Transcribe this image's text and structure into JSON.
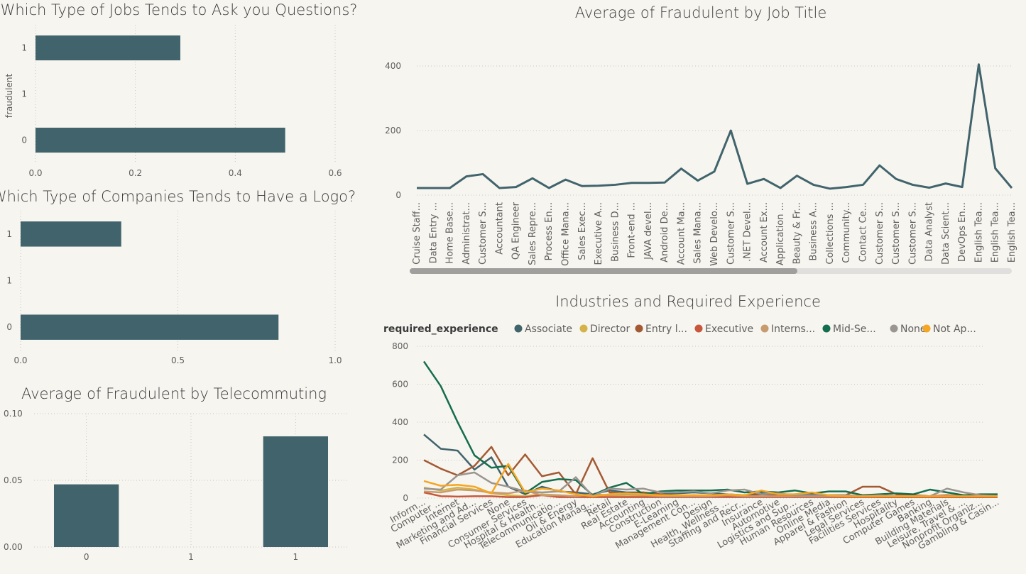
{
  "chart_data": [
    {
      "id": "questions",
      "type": "bar",
      "orientation": "horizontal",
      "title": "Which Type of Jobs Tends to Ask you Questions?",
      "ylabel": "fraudulent",
      "categories": [
        "1",
        "1",
        "0"
      ],
      "values": [
        0.29,
        null,
        0.5
      ],
      "xticks": [
        "0.0",
        "0.2",
        "0.4",
        "0.6"
      ],
      "xlim": [
        0,
        0.6
      ],
      "color": "#41646c"
    },
    {
      "id": "logo",
      "type": "bar",
      "orientation": "horizontal",
      "title": "Which Type of Companies Tends to Have a Logo?",
      "categories": [
        "1",
        "1",
        "0"
      ],
      "values": [
        0.32,
        null,
        0.82
      ],
      "xticks": [
        "0.0",
        "0.5",
        "1.0"
      ],
      "xlim": [
        0,
        1.0
      ],
      "color": "#41646c"
    },
    {
      "id": "telecommuting",
      "type": "bar",
      "orientation": "vertical",
      "title": "Average of Fraudulent by Telecommuting",
      "categories": [
        "0",
        "1",
        "1"
      ],
      "values": [
        0.047,
        null,
        0.083
      ],
      "yticks": [
        "0.00",
        "0.05",
        "0.10"
      ],
      "ylim": [
        0,
        0.1
      ],
      "color": "#41646c"
    },
    {
      "id": "jobtitle",
      "type": "line",
      "title": "Average of Fraudulent by Job Title",
      "categories": [
        "Cruise Staff...",
        "Data Entry ...",
        "Home Base...",
        "Administrat...",
        "Customer S...",
        "Accountant",
        "QA Engineer",
        "Sales Repre...",
        "Process En...",
        "Office Mana...",
        "Sales Exec...",
        "Executive A...",
        "Business D...",
        "Front-end ...",
        "JAVA devel...",
        "Android De...",
        "Account Ma...",
        "Sales Mana...",
        "Web Develo...",
        "Customer S...",
        ".NET Devel...",
        "Account Ex...",
        "Application ...",
        "Beauty & Fr...",
        "Business A...",
        "Collections ...",
        "Community...",
        "Contact Ce...",
        "Customer S...",
        "Customer S...",
        "Customer S...",
        "Data Analyst",
        "Data Scient...",
        "DevOps En...",
        "English Tea...",
        "English Tea...",
        "English Tea..."
      ],
      "values": [
        22,
        22,
        22,
        58,
        65,
        22,
        25,
        52,
        22,
        48,
        28,
        29,
        32,
        38,
        38,
        39,
        82,
        45,
        73,
        200,
        35,
        50,
        22,
        60,
        32,
        20,
        25,
        32,
        92,
        50,
        32,
        23,
        36,
        25,
        405,
        83,
        22
      ],
      "yticks": [
        "0",
        "200",
        "400"
      ],
      "ylim": [
        0,
        450
      ],
      "color": "#41646c"
    },
    {
      "id": "industries",
      "type": "line",
      "title": "Industries and Required Experience",
      "legend_title": "required_experience",
      "categories": [
        "Inform...",
        "Computer ...",
        "Internet",
        "Marketing and Ad...",
        "Financial Services",
        "None",
        "Consumer Services",
        "Hospital & Health...",
        "Telecommunicatio...",
        "Oil & Energy",
        "Education Manag...",
        "Retail",
        "Real Estate",
        "Accounting",
        "Construction",
        "E-Learning",
        "Management Con...",
        "Design",
        "Health, Wellness ...",
        "Staffing and Recr...",
        "Insurance",
        "Automotive",
        "Logistics and Sup...",
        "Human Resources",
        "Online Media",
        "Apparel & Fashion",
        "Legal Services",
        "Facilities Services",
        "Hospitality",
        "Computer Games",
        "Banking",
        "Building Materials",
        "Leisure, Travel & ...",
        "Nonprofit Organiz...",
        "Gambling & Casin..."
      ],
      "yticks": [
        "0",
        "200",
        "400",
        "600",
        "800"
      ],
      "ylim": [
        0,
        800
      ],
      "series": [
        {
          "name": "Associate",
          "color": "#41646c",
          "values": [
            335,
            260,
            250,
            150,
            215,
            60,
            20,
            60,
            35,
            30,
            20,
            40,
            30,
            30,
            20,
            25,
            30,
            25,
            20,
            15,
            25,
            20,
            15,
            20,
            15,
            15,
            10,
            15,
            10,
            15,
            10,
            10,
            10,
            10,
            10
          ]
        },
        {
          "name": "Director",
          "color": "#d4b44a",
          "values": [
            55,
            40,
            55,
            45,
            25,
            15,
            10,
            20,
            15,
            10,
            10,
            15,
            10,
            10,
            10,
            10,
            10,
            10,
            10,
            10,
            10,
            10,
            5,
            10,
            5,
            5,
            10,
            5,
            5,
            5,
            5,
            5,
            5,
            5,
            5
          ]
        },
        {
          "name": "Entry l...",
          "color": "#a35a33",
          "values": [
            200,
            155,
            120,
            170,
            270,
            120,
            230,
            115,
            135,
            20,
            210,
            30,
            20,
            30,
            20,
            10,
            15,
            10,
            15,
            10,
            20,
            15,
            20,
            20,
            15,
            15,
            60,
            60,
            20,
            15,
            10,
            15,
            10,
            10,
            10
          ]
        },
        {
          "name": "Executive",
          "color": "#c8563b",
          "values": [
            30,
            10,
            8,
            10,
            10,
            5,
            5,
            15,
            5,
            5,
            5,
            5,
            5,
            5,
            5,
            5,
            5,
            5,
            5,
            5,
            5,
            5,
            5,
            5,
            5,
            5,
            5,
            5,
            5,
            5,
            5,
            5,
            5,
            5,
            5
          ]
        },
        {
          "name": "Interns...",
          "color": "#c89b6e",
          "values": [
            35,
            30,
            45,
            40,
            30,
            25,
            40,
            15,
            15,
            10,
            20,
            15,
            20,
            15,
            10,
            10,
            10,
            10,
            15,
            10,
            10,
            10,
            10,
            10,
            10,
            10,
            10,
            10,
            10,
            10,
            10,
            10,
            10,
            10,
            10
          ]
        },
        {
          "name": "Mid-Se...",
          "color": "#146d4e",
          "values": [
            720,
            590,
            400,
            225,
            160,
            170,
            25,
            85,
            100,
            95,
            15,
            55,
            80,
            20,
            35,
            40,
            40,
            40,
            45,
            30,
            35,
            30,
            40,
            25,
            35,
            35,
            15,
            20,
            25,
            20,
            45,
            30,
            15,
            20,
            20
          ]
        },
        {
          "name": "None",
          "color": "#9b9590",
          "values": [
            50,
            45,
            120,
            135,
            80,
            60,
            35,
            30,
            35,
            110,
            10,
            50,
            45,
            50,
            30,
            30,
            35,
            25,
            40,
            45,
            20,
            25,
            15,
            15,
            15,
            15,
            10,
            15,
            10,
            10,
            10,
            50,
            30,
            15,
            10
          ]
        },
        {
          "name": "Not Ap...",
          "color": "#f5a623",
          "values": [
            90,
            65,
            70,
            60,
            25,
            180,
            30,
            50,
            40,
            20,
            10,
            20,
            25,
            20,
            15,
            15,
            15,
            15,
            20,
            15,
            40,
            20,
            20,
            30,
            15,
            10,
            10,
            10,
            10,
            10,
            10,
            10,
            10,
            10,
            10
          ]
        }
      ]
    }
  ]
}
